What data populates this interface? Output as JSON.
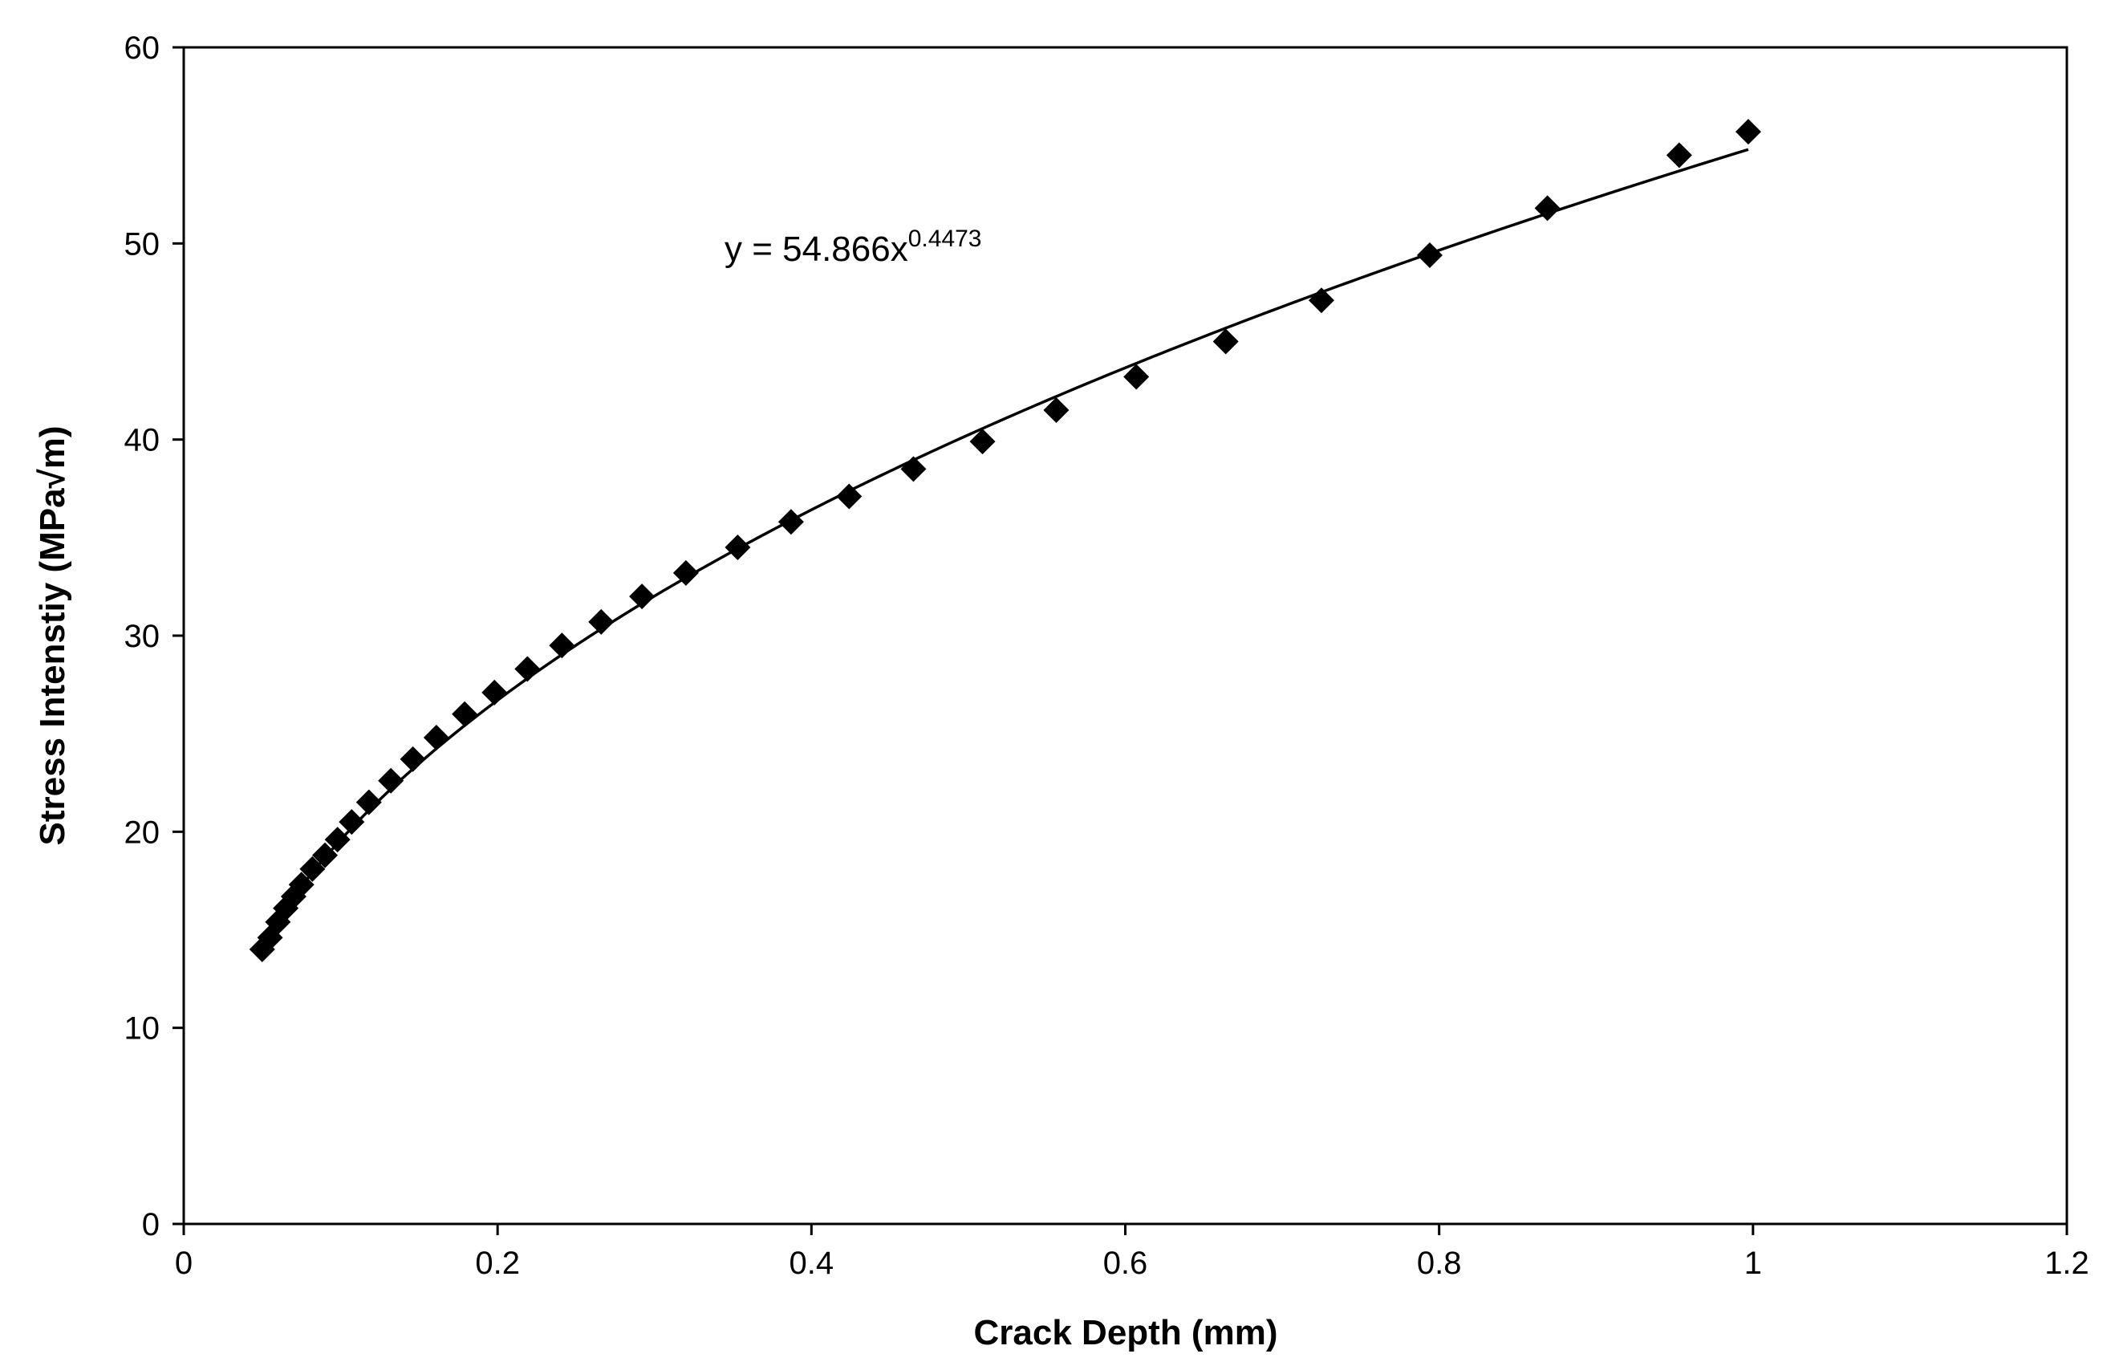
{
  "chart_data": {
    "type": "scatter",
    "title": "",
    "xlabel": "Crack Depth (mm)",
    "ylabel": "Stress Intenstiy (MPa√m)",
    "xlim": [
      0,
      1.2
    ],
    "ylim": [
      0,
      60
    ],
    "x_ticks": [
      0,
      0.2,
      0.4,
      0.6,
      0.8,
      1,
      1.2
    ],
    "y_ticks": [
      0,
      10,
      20,
      30,
      40,
      50,
      60
    ],
    "x_tick_labels": [
      "0",
      "0.2",
      "0.4",
      "0.6",
      "0.8",
      "1",
      "1.2"
    ],
    "y_tick_labels": [
      "0",
      "10",
      "20",
      "30",
      "40",
      "50",
      "60"
    ],
    "grid": false,
    "series": [
      {
        "name": "Stress Intensity",
        "marker": "diamond",
        "color": "#000000",
        "points": [
          [
            0.05,
            14.0
          ],
          [
            0.055,
            14.6
          ],
          [
            0.06,
            15.4
          ],
          [
            0.065,
            16.1
          ],
          [
            0.07,
            16.7
          ],
          [
            0.075,
            17.3
          ],
          [
            0.082,
            18.1
          ],
          [
            0.09,
            18.8
          ],
          [
            0.098,
            19.6
          ],
          [
            0.107,
            20.5
          ],
          [
            0.118,
            21.5
          ],
          [
            0.132,
            22.6
          ],
          [
            0.146,
            23.7
          ],
          [
            0.161,
            24.8
          ],
          [
            0.179,
            26.0
          ],
          [
            0.198,
            27.1
          ],
          [
            0.219,
            28.3
          ],
          [
            0.241,
            29.5
          ],
          [
            0.266,
            30.7
          ],
          [
            0.292,
            32.0
          ],
          [
            0.32,
            33.2
          ],
          [
            0.353,
            34.5
          ],
          [
            0.387,
            35.8
          ],
          [
            0.424,
            37.1
          ],
          [
            0.465,
            38.5
          ],
          [
            0.509,
            39.9
          ],
          [
            0.556,
            41.5
          ],
          [
            0.607,
            43.2
          ],
          [
            0.664,
            45.0
          ],
          [
            0.725,
            47.1
          ],
          [
            0.794,
            49.4
          ],
          [
            0.869,
            51.8
          ],
          [
            0.953,
            54.5
          ],
          [
            0.997,
            55.7
          ]
        ]
      }
    ],
    "trendline": {
      "type": "power",
      "coefficient": 54.866,
      "exponent": 0.4473,
      "x_range": [
        0.05,
        0.997
      ],
      "equation_prefix": "y = 54.866x",
      "equation_exponent": "0.4473"
    },
    "legend": "none"
  }
}
